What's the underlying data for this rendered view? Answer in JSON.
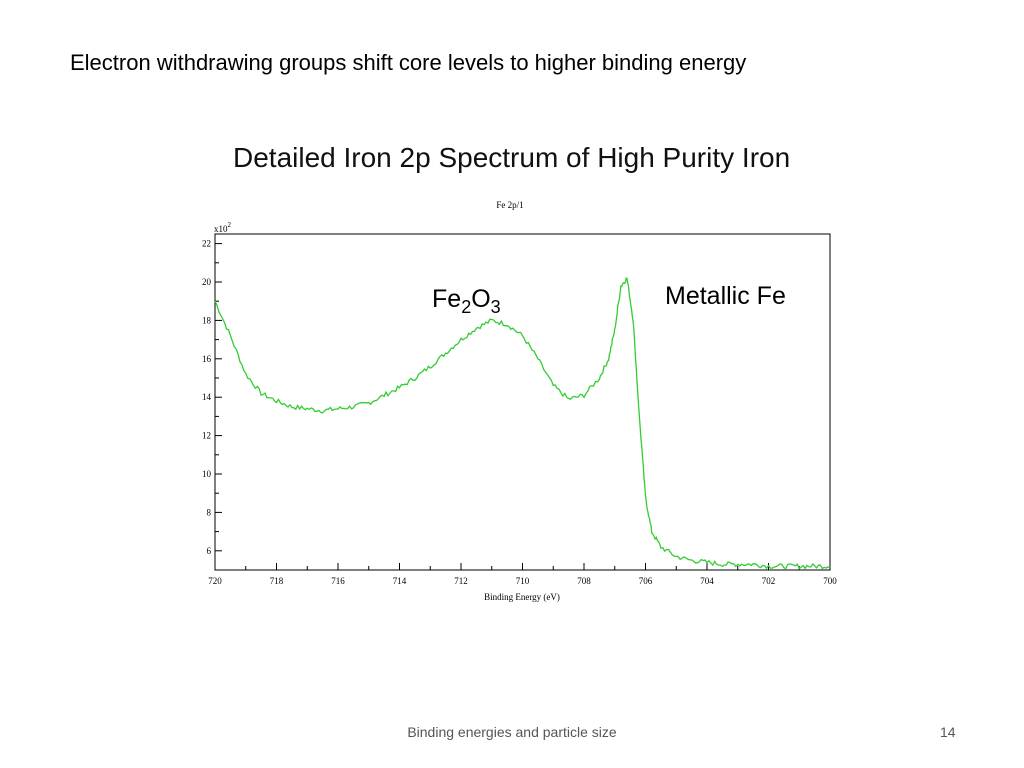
{
  "slide": {
    "heading": "Electron withdrawing groups shift core levels to higher binding energy",
    "footer": "Binding energies and particle size",
    "slide_number": "14"
  },
  "chart_data": {
    "type": "line",
    "title": "Detailed Iron 2p Spectrum of High Purity Iron",
    "subtitle": "Fe 2p/1",
    "xlabel": "Binding Energy (eV)",
    "ylabel": "",
    "y_multiplier_label": "x10",
    "y_multiplier_exp": "2",
    "xlim": [
      720,
      700
    ],
    "ylim": [
      5,
      22.5
    ],
    "x_reversed": true,
    "x_ticks": [
      720,
      718,
      716,
      714,
      712,
      710,
      708,
      706,
      704,
      702,
      700
    ],
    "y_ticks": [
      6,
      8,
      10,
      12,
      14,
      16,
      18,
      20,
      22
    ],
    "line_color": "#33cc33",
    "annotations": [
      {
        "base": "Fe",
        "sub1": "2",
        "mid": "O",
        "sub2": "3",
        "x": 711.5,
        "y": 20.0
      },
      {
        "text": "Metallic Fe",
        "x": 704,
        "y": 20.0
      }
    ],
    "series": [
      {
        "x": [
          720,
          719.5,
          719,
          718.5,
          718,
          717.5,
          717,
          716.5,
          716,
          715.5,
          715,
          714.5,
          714,
          713.5,
          713,
          712.5,
          712,
          711.5,
          711,
          710.5,
          710,
          709.5,
          709,
          708.5,
          708,
          707.5,
          707.2,
          707,
          706.8,
          706.6,
          706.4,
          706.2,
          706,
          705.8,
          705.5,
          705,
          704.5,
          704,
          703.5,
          703,
          702.5,
          702,
          701.5,
          701,
          700.5,
          700
        ],
        "y": [
          19.0,
          17.2,
          15.2,
          14.2,
          13.8,
          13.5,
          13.4,
          13.3,
          13.4,
          13.5,
          13.7,
          14.1,
          14.5,
          15.0,
          15.6,
          16.3,
          17.0,
          17.6,
          18.0,
          17.8,
          17.2,
          16.0,
          14.6,
          13.9,
          14.1,
          15.0,
          16.0,
          17.5,
          19.8,
          20.2,
          18.0,
          13.0,
          8.8,
          7.0,
          6.2,
          5.7,
          5.5,
          5.4,
          5.3,
          5.3,
          5.3,
          5.2,
          5.2,
          5.2,
          5.2,
          5.2
        ]
      }
    ]
  }
}
